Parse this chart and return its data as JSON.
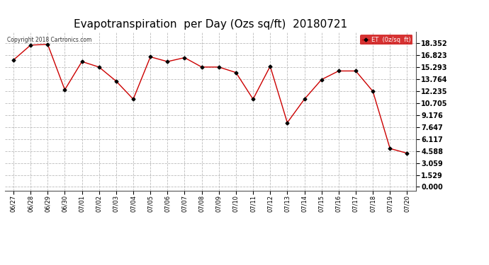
{
  "title": "Evapotranspiration  per Day (Ozs sq/ft)  20180721",
  "copyright_text": "Copyright 2018 Cartronics.com",
  "legend_label": "ET  (0z/sq  ft)",
  "dates": [
    "06/27",
    "06/28",
    "06/29",
    "06/30",
    "07/01",
    "07/02",
    "07/03",
    "07/04",
    "07/05",
    "07/06",
    "07/07",
    "07/08",
    "07/09",
    "07/10",
    "07/11",
    "07/12",
    "07/13",
    "07/14",
    "07/15",
    "07/16",
    "07/17",
    "07/18",
    "07/19",
    "07/20"
  ],
  "values": [
    16.2,
    18.1,
    18.2,
    12.4,
    16.0,
    15.3,
    13.5,
    11.2,
    16.6,
    16.0,
    16.5,
    15.3,
    15.3,
    14.6,
    11.2,
    15.4,
    8.2,
    11.2,
    13.7,
    14.8,
    14.8,
    12.2,
    4.9,
    4.3
  ],
  "line_color": "#cc0000",
  "marker_color": "#000000",
  "background_color": "#ffffff",
  "grid_color": "#bbbbbb",
  "yticks": [
    0.0,
    1.529,
    3.059,
    4.588,
    6.117,
    7.647,
    9.176,
    10.705,
    12.235,
    13.764,
    15.293,
    16.823,
    18.352
  ],
  "ylim": [
    -0.5,
    19.8
  ],
  "title_fontsize": 11,
  "legend_bg": "#cc0000",
  "legend_text_color": "#ffffff"
}
